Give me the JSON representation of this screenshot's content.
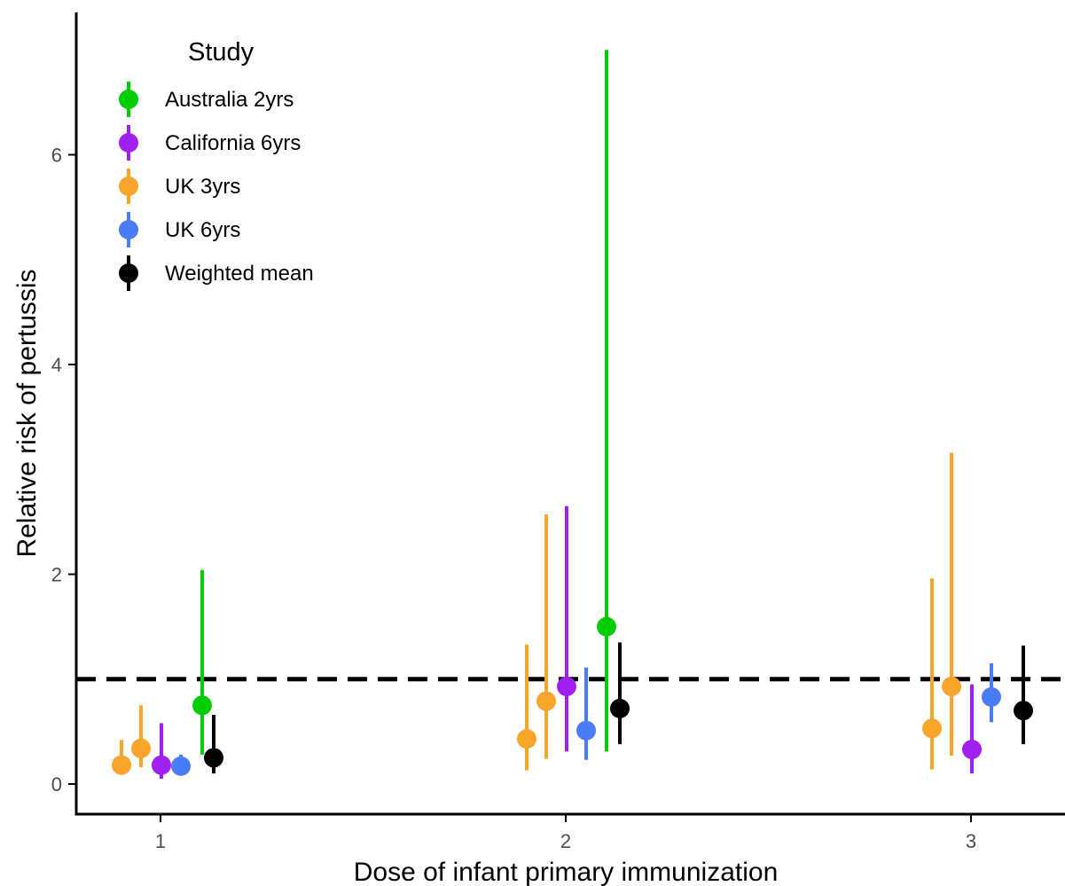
{
  "chart_data": {
    "type": "scatter",
    "subtype": "point-range",
    "xlabel": "Dose of infant primary immunization",
    "ylabel": "Relative risk of pertussis",
    "x_categories": [
      "1",
      "2",
      "3"
    ],
    "y_ticks": [
      "0",
      "2",
      "4",
      "6"
    ],
    "ylim": [
      -0.3,
      7.4
    ],
    "reference_line": {
      "y": 1.0,
      "style": "dashed",
      "color": "#000000"
    },
    "grid": false,
    "legend": {
      "title": "Study",
      "position": "top-left"
    },
    "series": [
      {
        "name": "Australia 2yrs",
        "color": "#00CD00",
        "points": [
          {
            "dose": "1",
            "estimate": 0.75,
            "lower": 0.28,
            "upper": 2.04
          },
          {
            "dose": "2",
            "estimate": 1.5,
            "lower": 0.31,
            "upper": 7.0
          }
        ]
      },
      {
        "name": "California 6yrs",
        "color": "#A020F0",
        "points": [
          {
            "dose": "1",
            "estimate": 0.18,
            "lower": 0.05,
            "upper": 0.58
          },
          {
            "dose": "2",
            "estimate": 0.93,
            "lower": 0.31,
            "upper": 2.65
          },
          {
            "dose": "3",
            "estimate": 0.33,
            "lower": 0.1,
            "upper": 0.95
          }
        ]
      },
      {
        "name": "UK 3yrs",
        "color": "#F9A52C",
        "points": [
          {
            "dose": "1",
            "estimate": 0.18,
            "lower": 0.1,
            "upper": 0.42
          },
          {
            "dose": "1",
            "estimate": 0.34,
            "lower": 0.16,
            "upper": 0.75
          },
          {
            "dose": "2",
            "estimate": 0.43,
            "lower": 0.13,
            "upper": 1.33
          },
          {
            "dose": "2",
            "estimate": 0.79,
            "lower": 0.24,
            "upper": 2.57
          },
          {
            "dose": "3",
            "estimate": 0.53,
            "lower": 0.14,
            "upper": 1.96
          },
          {
            "dose": "3",
            "estimate": 0.93,
            "lower": 0.27,
            "upper": 3.16
          }
        ]
      },
      {
        "name": "UK 6yrs",
        "color": "#4A7CF6",
        "points": [
          {
            "dose": "1",
            "estimate": 0.17,
            "lower": 0.12,
            "upper": 0.28
          },
          {
            "dose": "2",
            "estimate": 0.51,
            "lower": 0.23,
            "upper": 1.11
          },
          {
            "dose": "3",
            "estimate": 0.83,
            "lower": 0.59,
            "upper": 1.15
          }
        ]
      },
      {
        "name": "Weighted mean",
        "color": "#000000",
        "points": [
          {
            "dose": "1",
            "estimate": 0.25,
            "lower": 0.1,
            "upper": 0.66
          },
          {
            "dose": "2",
            "estimate": 0.72,
            "lower": 0.38,
            "upper": 1.35
          },
          {
            "dose": "3",
            "estimate": 0.7,
            "lower": 0.38,
            "upper": 1.32
          }
        ]
      }
    ]
  }
}
